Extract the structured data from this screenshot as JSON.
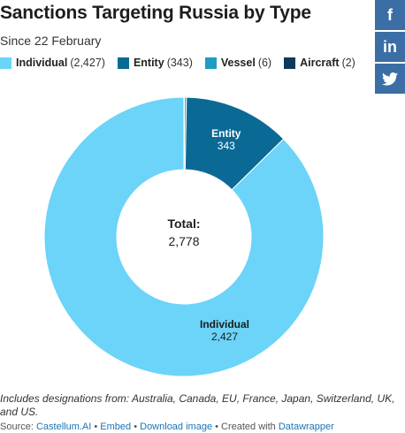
{
  "title": "Sanctions Targeting Russia by Type",
  "subtitle": "Since 22 February",
  "legend": [
    {
      "name": "Individual",
      "count": "(2,427)",
      "color": "#6bd4f8"
    },
    {
      "name": "Entity",
      "count": "(343)",
      "color": "#0b6a95"
    },
    {
      "name": "Vessel",
      "count": "(6)",
      "color": "#1e9cc4"
    },
    {
      "name": "Aircraft",
      "count": "(2)",
      "color": "#0b3a5c"
    }
  ],
  "center": {
    "label": "Total:",
    "value": "2,778"
  },
  "slice_labels": {
    "entity": {
      "name": "Entity",
      "value": "343"
    },
    "individual": {
      "name": "Individual",
      "value": "2,427"
    }
  },
  "share": [
    {
      "icon": "facebook-icon",
      "glyph": "f"
    },
    {
      "icon": "linkedin-icon",
      "glyph": "in"
    },
    {
      "icon": "twitter-icon",
      "glyph": ""
    }
  ],
  "notes": "Includes designations from: Australia, Canada, EU, France, Japan, Switzerland, UK, and US.",
  "footer": {
    "source_prefix": "Source: ",
    "source_link": "Castellum.AI",
    "sep": " • ",
    "embed": "Embed",
    "download": "Download image",
    "created_prefix": "Created with ",
    "created_link": "Datawrapper"
  },
  "chart_data": {
    "type": "pie",
    "donut": true,
    "categories": [
      "Individual",
      "Entity",
      "Vessel",
      "Aircraft"
    ],
    "values": [
      2427,
      343,
      6,
      2
    ],
    "colors": [
      "#6bd4f8",
      "#0b6a95",
      "#1e9cc4",
      "#0b3a5c"
    ],
    "total": 2778,
    "title": "Sanctions Targeting Russia by Type",
    "subtitle": "Since 22 February",
    "legend": "top"
  }
}
